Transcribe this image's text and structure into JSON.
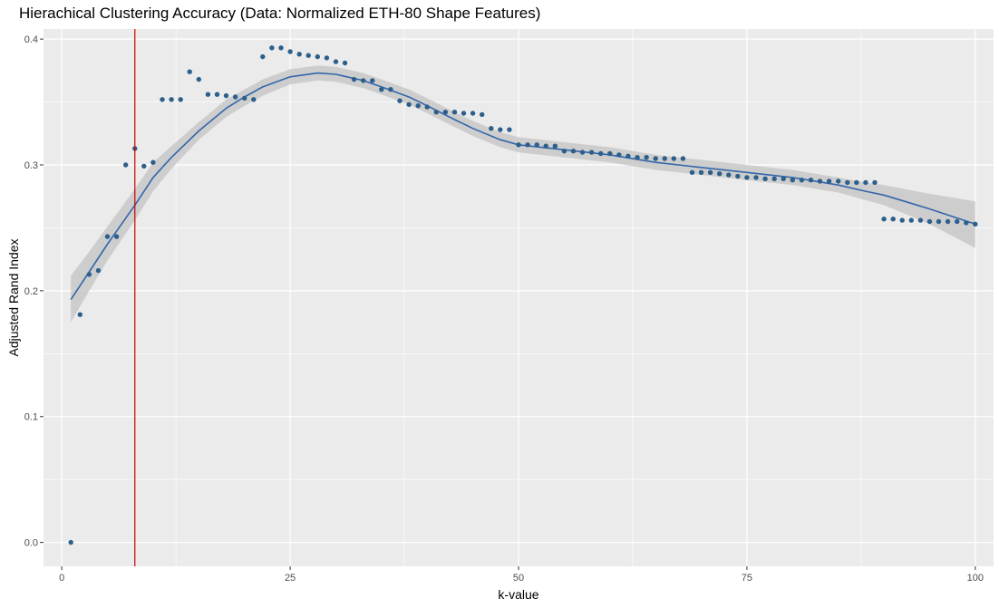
{
  "chart_data": {
    "type": "scatter",
    "title": "Hierachical Clustering Accuracy (Data: Normalized ETH-80 Shape Features)",
    "xlabel": "k-value",
    "ylabel": "Adjusted Rand Index",
    "xlim": [
      -2,
      102
    ],
    "ylim": [
      -0.019,
      0.408
    ],
    "x_ticks": [
      0,
      25,
      50,
      75,
      100
    ],
    "y_ticks": [
      0.0,
      0.1,
      0.2,
      0.3,
      0.4
    ],
    "x_tick_labels": [
      "0",
      "25",
      "50",
      "75",
      "100"
    ],
    "y_tick_labels": [
      "0.0",
      "0.1",
      "0.2",
      "0.3",
      "0.4"
    ],
    "grid": true,
    "vline": {
      "x": 8,
      "color": "#cc0000"
    },
    "colors": {
      "points": "#2c5f8a",
      "smooth_line": "#3366aa",
      "ribbon": "#c8c8c8",
      "panel": "#ebebeb",
      "grid": "#ffffff"
    },
    "series": [
      {
        "type": "points",
        "x": [
          1,
          2,
          3,
          4,
          5,
          6,
          7,
          8,
          9,
          10,
          11,
          12,
          13,
          14,
          15,
          16,
          17,
          18,
          19,
          20,
          21,
          22,
          23,
          24,
          25,
          26,
          27,
          28,
          29,
          30,
          31,
          32,
          33,
          34,
          35,
          36,
          37,
          38,
          39,
          40,
          41,
          42,
          43,
          44,
          45,
          46,
          47,
          48,
          49,
          50,
          51,
          52,
          53,
          54,
          55,
          56,
          57,
          58,
          59,
          60,
          61,
          62,
          63,
          64,
          65,
          66,
          67,
          68,
          69,
          70,
          71,
          72,
          73,
          74,
          75,
          76,
          77,
          78,
          79,
          80,
          81,
          82,
          83,
          84,
          85,
          86,
          87,
          88,
          89,
          90,
          91,
          92,
          93,
          94,
          95,
          96,
          97,
          98,
          99,
          100
        ],
        "y": [
          0.0,
          0.181,
          0.213,
          0.216,
          0.243,
          0.243,
          0.3,
          0.313,
          0.299,
          0.302,
          0.352,
          0.352,
          0.352,
          0.374,
          0.368,
          0.356,
          0.356,
          0.355,
          0.354,
          0.353,
          0.352,
          0.386,
          0.393,
          0.393,
          0.39,
          0.388,
          0.387,
          0.386,
          0.385,
          0.382,
          0.381,
          0.368,
          0.367,
          0.367,
          0.36,
          0.36,
          0.351,
          0.348,
          0.347,
          0.346,
          0.342,
          0.342,
          0.342,
          0.341,
          0.341,
          0.34,
          0.329,
          0.328,
          0.328,
          0.316,
          0.316,
          0.316,
          0.315,
          0.315,
          0.311,
          0.311,
          0.31,
          0.31,
          0.309,
          0.309,
          0.308,
          0.307,
          0.306,
          0.306,
          0.305,
          0.305,
          0.305,
          0.305,
          0.294,
          0.294,
          0.294,
          0.293,
          0.292,
          0.291,
          0.29,
          0.29,
          0.289,
          0.289,
          0.289,
          0.288,
          0.288,
          0.288,
          0.287,
          0.287,
          0.287,
          0.286,
          0.286,
          0.286,
          0.286,
          0.257,
          0.257,
          0.256,
          0.256,
          0.256,
          0.255,
          0.255,
          0.255,
          0.255,
          0.254,
          0.253
        ]
      },
      {
        "type": "smooth",
        "x": [
          1,
          3,
          5,
          8,
          10,
          12,
          15,
          18,
          20,
          22,
          25,
          28,
          30,
          33,
          35,
          38,
          40,
          43,
          45,
          48,
          50,
          55,
          60,
          65,
          70,
          75,
          80,
          85,
          88,
          90,
          95,
          100
        ],
        "y": [
          0.193,
          0.215,
          0.237,
          0.268,
          0.29,
          0.306,
          0.327,
          0.345,
          0.354,
          0.362,
          0.37,
          0.373,
          0.372,
          0.367,
          0.362,
          0.354,
          0.347,
          0.336,
          0.329,
          0.32,
          0.316,
          0.312,
          0.308,
          0.302,
          0.298,
          0.294,
          0.29,
          0.284,
          0.279,
          0.276,
          0.265,
          0.253
        ],
        "lower": [
          0.175,
          0.2,
          0.224,
          0.256,
          0.279,
          0.297,
          0.32,
          0.338,
          0.347,
          0.355,
          0.364,
          0.367,
          0.366,
          0.361,
          0.356,
          0.348,
          0.341,
          0.33,
          0.323,
          0.314,
          0.31,
          0.306,
          0.302,
          0.296,
          0.292,
          0.288,
          0.284,
          0.278,
          0.272,
          0.268,
          0.253,
          0.234
        ],
        "upper": [
          0.212,
          0.231,
          0.251,
          0.281,
          0.302,
          0.315,
          0.334,
          0.352,
          0.36,
          0.368,
          0.376,
          0.379,
          0.378,
          0.373,
          0.368,
          0.36,
          0.353,
          0.342,
          0.335,
          0.326,
          0.322,
          0.318,
          0.314,
          0.308,
          0.304,
          0.3,
          0.296,
          0.29,
          0.286,
          0.284,
          0.277,
          0.271
        ]
      }
    ]
  }
}
